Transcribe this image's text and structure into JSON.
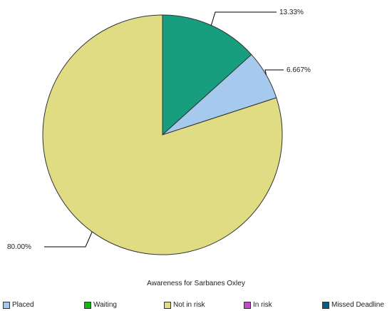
{
  "chart_data": {
    "type": "pie",
    "title": "Awareness for Sarbanes Oxley",
    "slices": [
      {
        "name": "Waiting",
        "value": 13.33,
        "label": "13.33%",
        "color": "#169e7f"
      },
      {
        "name": "Placed",
        "value": 6.667,
        "label": "6.667%",
        "color": "#a6c9ee"
      },
      {
        "name": "Not in risk",
        "value": 80.0,
        "label": "80.00%",
        "color": "#e0dc84"
      }
    ],
    "legend_position": "bottom",
    "legend": [
      {
        "name": "Placed",
        "color": "#a6c9ee"
      },
      {
        "name": "Waiting",
        "color": "#14b414"
      },
      {
        "name": "Not in risk",
        "color": "#e0dc84"
      },
      {
        "name": "In risk",
        "color": "#c04cc8"
      },
      {
        "name": "Missed Deadline",
        "color": "#0d5c80"
      }
    ]
  }
}
